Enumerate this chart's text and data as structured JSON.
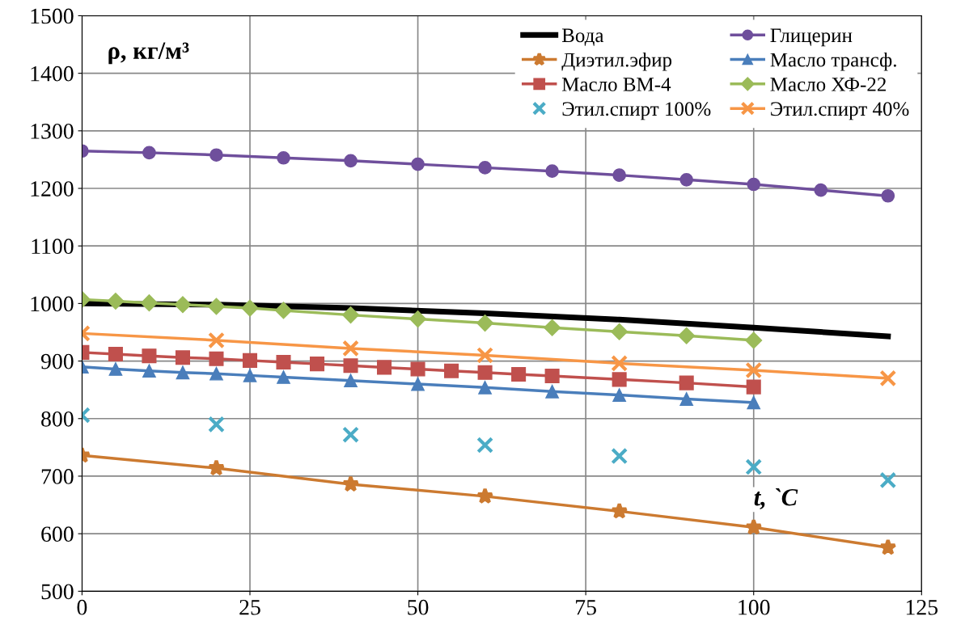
{
  "chart_data": {
    "type": "line",
    "xlabel": "t, `C",
    "ylabel": "ρ, кг/м³",
    "xlim": [
      0,
      125
    ],
    "xticks": [
      0,
      25,
      50,
      75,
      100,
      125
    ],
    "ylim": [
      500,
      1500
    ],
    "yticks": [
      500,
      600,
      700,
      800,
      900,
      1000,
      1100,
      1200,
      1300,
      1400,
      1500
    ],
    "grid": true,
    "legend": "top right",
    "series": [
      {
        "name": "Вода",
        "color": "#000000",
        "marker": "none",
        "x": [
          0,
          20,
          40,
          60,
          80,
          100,
          120
        ],
        "values": [
          1000,
          998,
          992,
          983,
          972,
          958,
          943
        ]
      },
      {
        "name": "Глицерин",
        "color": "#6f4f9c",
        "marker": "circle",
        "x": [
          0,
          10,
          20,
          30,
          40,
          50,
          60,
          70,
          80,
          90,
          100,
          110,
          120
        ],
        "values": [
          1265,
          1262,
          1258,
          1253,
          1248,
          1242,
          1236,
          1230,
          1223,
          1215,
          1207,
          1197,
          1187
        ]
      },
      {
        "name": "Диэтил.эфир",
        "color": "#cc7a30",
        "marker": "star",
        "x": [
          0,
          20,
          40,
          60,
          80,
          100,
          120
        ],
        "values": [
          736,
          714,
          686,
          665,
          639,
          611,
          576
        ]
      },
      {
        "name": "Масло трансф.",
        "color": "#4a7ebb",
        "marker": "triangle",
        "x": [
          0,
          5,
          10,
          15,
          20,
          25,
          30,
          40,
          50,
          60,
          70,
          80,
          90,
          100
        ],
        "values": [
          890,
          886,
          883,
          880,
          878,
          875,
          872,
          866,
          860,
          854,
          847,
          841,
          834,
          828
        ]
      },
      {
        "name": "Масло ВМ-4",
        "color": "#c0504d",
        "marker": "square",
        "x": [
          0,
          5,
          10,
          15,
          20,
          25,
          30,
          35,
          40,
          45,
          50,
          55,
          60,
          65,
          70,
          80,
          90,
          100
        ],
        "values": [
          915,
          912,
          909,
          906,
          904,
          901,
          898,
          895,
          892,
          889,
          886,
          883,
          880,
          877,
          874,
          868,
          862,
          855
        ]
      },
      {
        "name": "Масло ХФ-22",
        "color": "#9bbb59",
        "marker": "diamond",
        "x": [
          0,
          5,
          10,
          15,
          20,
          25,
          30,
          40,
          50,
          60,
          70,
          80,
          90,
          100
        ],
        "values": [
          1007,
          1004,
          1001,
          998,
          995,
          992,
          988,
          980,
          973,
          966,
          958,
          951,
          944,
          936
        ]
      },
      {
        "name": "Этил.спирт 100%",
        "color": "#4bacc6",
        "type": "scatter",
        "marker": "cross",
        "x": [
          0,
          20,
          40,
          60,
          80,
          100,
          120
        ],
        "values": [
          806,
          790,
          772,
          754,
          735,
          716,
          693
        ]
      },
      {
        "name": "Этил.спирт 40%",
        "color": "#f79646",
        "marker": "cross",
        "x": [
          0,
          20,
          40,
          60,
          80,
          100,
          120
        ],
        "values": [
          948,
          936,
          922,
          910,
          896,
          884,
          870
        ]
      }
    ]
  }
}
